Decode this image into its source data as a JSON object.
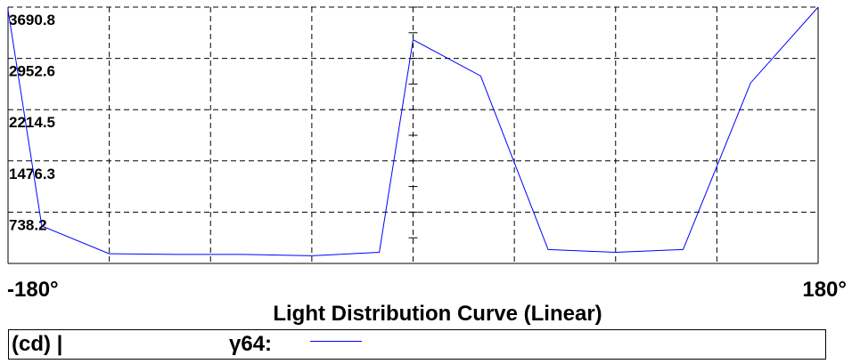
{
  "chart_data": {
    "type": "line",
    "title": "Light Distribution Curve (Linear)",
    "xlabel": "",
    "ylabel": "",
    "xlim": [
      -180,
      180
    ],
    "ylim": [
      0,
      3690.8
    ],
    "x_tick_labels": [
      "-180°",
      "180°"
    ],
    "y_ticks": [
      {
        "value": 738.2,
        "label": "738.2"
      },
      {
        "value": 1476.3,
        "label": "1476.3"
      },
      {
        "value": 2214.5,
        "label": "2214.5"
      },
      {
        "value": 2952.6,
        "label": "2952.6"
      },
      {
        "value": 3690.8,
        "label": "3690.8"
      }
    ],
    "grid": true,
    "legend": {
      "unit": "(cd) |",
      "placement": "bottom"
    },
    "series": [
      {
        "name": "γ64:",
        "color": "#0000ff",
        "x": [
          -180,
          -165,
          -135,
          -105,
          -75,
          -45,
          -15,
          0,
          30,
          60,
          90,
          120,
          150,
          180
        ],
        "y": [
          3650,
          540,
          140,
          130,
          130,
          110,
          160,
          3220,
          2700,
          200,
          160,
          200,
          2600,
          3690.8
        ]
      }
    ]
  }
}
